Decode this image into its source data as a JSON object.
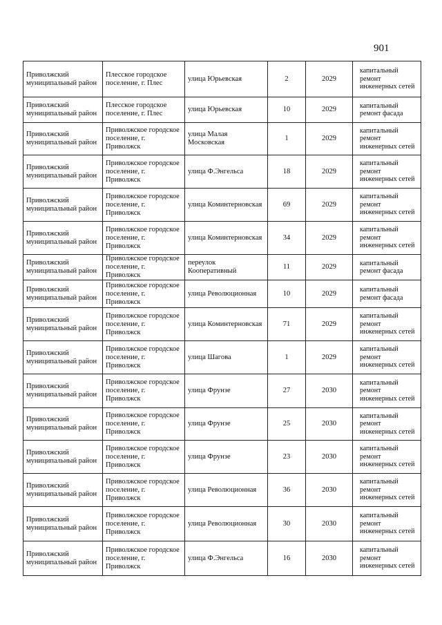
{
  "page_number": "901",
  "rows": [
    [
      "Приволжский муниципальный район",
      "Плесское городское поселение, г. Плес",
      "улица Юрьевская",
      "2",
      "2029",
      "капитальный ремонт инженерных сетей"
    ],
    [
      "Приволжский муниципальный район",
      "Плесское городское поселение, г. Плес",
      "улица Юрьевская",
      "10",
      "2029",
      "капитальный ремонт фасада"
    ],
    [
      "Приволжский муниципальный район",
      "Приволжское городское поселение, г. Приволжск",
      "улица Малая Московская",
      "1",
      "2029",
      "капитальный ремонт инженерных сетей"
    ],
    [
      "Приволжский муниципальный район",
      "Приволжское городское поселение, г. Приволжск",
      "улица Ф.Энгельса",
      "18",
      "2029",
      "капитальный ремонт инженерных сетей"
    ],
    [
      "Приволжский муниципальный район",
      "Приволжское городское поселение, г. Приволжск",
      "улица Коминтерновская",
      "69",
      "2029",
      "капитальный ремонт инженерных сетей"
    ],
    [
      "Приволжский муниципальный район",
      "Приволжское городское поселение, г. Приволжск",
      "улица Коминтерновская",
      "34",
      "2029",
      "капитальный ремонт инженерных сетей"
    ],
    [
      "Приволжский муниципальный район",
      "Приволжское городское поселение, г. Приволжск",
      "переулок Кооперативный",
      "11",
      "2029",
      "капитальный ремонт фасада"
    ],
    [
      "Приволжский муниципальный район",
      "Приволжское городское поселение, г. Приволжск",
      "улица Революционная",
      "10",
      "2029",
      "капитальный ремонт фасада"
    ],
    [
      "Приволжский муниципальный район",
      "Приволжское городское поселение, г. Приволжск",
      "улица Коминтерновская",
      "71",
      "2029",
      "капитальный ремонт инженерных сетей"
    ],
    [
      "Приволжский муниципальный район",
      "Приволжское городское поселение, г. Приволжск",
      "улица Шагова",
      "1",
      "2029",
      "капитальный ремонт инженерных сетей"
    ],
    [
      "Приволжский муниципальный район",
      "Приволжское городское поселение, г. Приволжск",
      "улица Фрунзе",
      "27",
      "2030",
      "капитальный ремонт инженерных сетей"
    ],
    [
      "Приволжский муниципальный район",
      "Приволжское городское поселение, г. Приволжск",
      "улица Фрунзе",
      "25",
      "2030",
      "капитальный ремонт инженерных сетей"
    ],
    [
      "Приволжский муниципальный район",
      "Приволжское городское поселение, г. Приволжск",
      "улица Фрунзе",
      "23",
      "2030",
      "капитальный ремонт инженерных сетей"
    ],
    [
      "Приволжский муниципальный район",
      "Приволжское городское поселение, г. Приволжск",
      "улица Революционная",
      "36",
      "2030",
      "капитальный ремонт инженерных сетей"
    ],
    [
      "Приволжский муниципальный район",
      "Приволжское городское поселение, г. Приволжск",
      "улица Революционная",
      "30",
      "2030",
      "капитальный ремонт инженерных сетей"
    ],
    [
      "Приволжский муниципальный район",
      "Приволжское городское поселение, г. Приволжск",
      "улица Ф.Энгельса",
      "16",
      "2030",
      "капитальный ремонт инженерных сетей"
    ]
  ]
}
